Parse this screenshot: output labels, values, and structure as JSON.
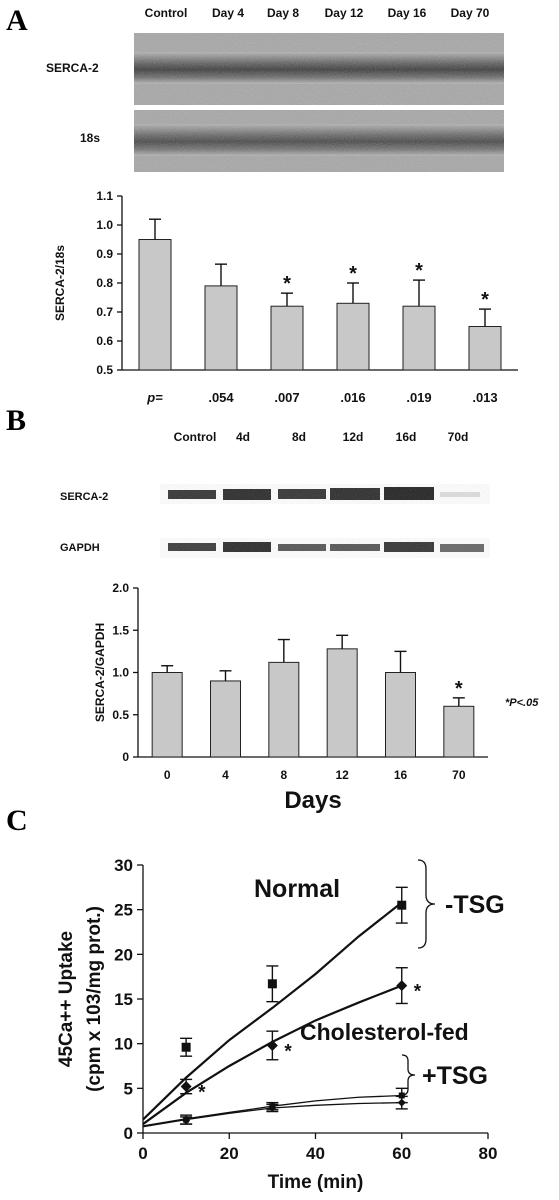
{
  "panels": [
    {
      "letter": "A",
      "blot_rows": [
        "SERCA-2",
        "18s"
      ],
      "lanes": [
        "Control",
        "Day 4",
        "Day 8",
        "Day 12",
        "Day 16",
        "Day 70"
      ],
      "p_label": "p=",
      "p_values": [
        "",
        ".054",
        ".007",
        ".016",
        ".019",
        ".013"
      ]
    },
    {
      "letter": "B",
      "blot_rows": [
        "SERCA-2",
        "GAPDH"
      ],
      "lanes": [
        "Control",
        "4d",
        "8d",
        "12d",
        "16d",
        "70d"
      ],
      "significance_note": "*P<.05"
    },
    {
      "letter": "C",
      "curve_labels": [
        "Normal",
        "Cholesterol-fed"
      ],
      "group_labels": [
        "-TSG",
        "+TSG"
      ]
    }
  ],
  "chart_data": [
    {
      "type": "bar",
      "categories": [
        "Control",
        "Day 4",
        "Day 8",
        "Day 12",
        "Day 16",
        "Day 70"
      ],
      "values": [
        0.95,
        0.79,
        0.72,
        0.73,
        0.72,
        0.65
      ],
      "errors": [
        0.07,
        0.075,
        0.045,
        0.07,
        0.09,
        0.06
      ],
      "significant": [
        false,
        false,
        true,
        true,
        true,
        true
      ],
      "xlabel": "",
      "ylabel": "SERCA-2/18s",
      "ylim": [
        0.5,
        1.1
      ],
      "yticks": [
        "0.5",
        "0.6",
        "0.7",
        "0.8",
        "0.9",
        "1.0",
        "1.1"
      ],
      "grid": false
    },
    {
      "type": "bar",
      "categories": [
        "0",
        "4",
        "8",
        "12",
        "16",
        "70"
      ],
      "values": [
        1.0,
        0.9,
        1.12,
        1.28,
        1.0,
        0.6
      ],
      "errors": [
        0.08,
        0.12,
        0.27,
        0.16,
        0.25,
        0.1
      ],
      "significant": [
        false,
        false,
        false,
        false,
        false,
        true
      ],
      "xlabel": "Days",
      "ylabel": "SERCA-2/GAPDH",
      "ylim": [
        0,
        2.0
      ],
      "yticks": [
        "0",
        "0.5",
        "1.0",
        "1.5",
        "2.0"
      ],
      "grid": false
    },
    {
      "type": "line",
      "xlabel": "Time (min)",
      "ylabel_lines": [
        "45Ca++ Uptake",
        "(cpm x 103/mg prot.)"
      ],
      "xlim": [
        0,
        80
      ],
      "ylim": [
        0,
        30
      ],
      "xticks": [
        "0",
        "20",
        "40",
        "60",
        "80"
      ],
      "yticks": [
        "0",
        "5",
        "10",
        "15",
        "20",
        "25",
        "30"
      ],
      "grid": false,
      "series": [
        {
          "name": "Normal",
          "marker": "square",
          "x": [
            10,
            30,
            60
          ],
          "y": [
            9.6,
            16.7,
            25.5
          ],
          "errors": [
            1.0,
            2.0,
            2.0
          ],
          "fit": [
            [
              0,
              1.5
            ],
            [
              10,
              6.2
            ],
            [
              20,
              10.4
            ],
            [
              30,
              14.0
            ],
            [
              40,
              17.8
            ],
            [
              50,
              22.0
            ],
            [
              60,
              25.8
            ]
          ],
          "significant": [
            false,
            false,
            false
          ]
        },
        {
          "name": "Cholesterol-fed",
          "marker": "diamond",
          "x": [
            10,
            30,
            60
          ],
          "y": [
            5.2,
            9.8,
            16.5
          ],
          "errors": [
            0.8,
            1.6,
            2.0
          ],
          "fit": [
            [
              0,
              1.0
            ],
            [
              10,
              4.5
            ],
            [
              20,
              7.5
            ],
            [
              30,
              10.2
            ],
            [
              40,
              12.6
            ],
            [
              50,
              14.6
            ],
            [
              60,
              16.5
            ]
          ],
          "significant": [
            true,
            true,
            true
          ]
        },
        {
          "name": "",
          "marker": "square",
          "x": [
            10,
            30,
            60
          ],
          "y": [
            1.5,
            3.0,
            4.2
          ],
          "errors": [
            0.5,
            0.4,
            0.8
          ],
          "fit": [
            [
              0,
              0.8
            ],
            [
              10,
              1.6
            ],
            [
              20,
              2.3
            ],
            [
              30,
              3.0
            ],
            [
              40,
              3.6
            ],
            [
              50,
              4.0
            ],
            [
              60,
              4.2
            ]
          ],
          "significant": [
            false,
            false,
            false
          ]
        },
        {
          "name": "",
          "marker": "diamond",
          "x": [
            10,
            30,
            60
          ],
          "y": [
            1.4,
            2.8,
            3.4
          ],
          "errors": [
            0.4,
            0.4,
            0.7
          ],
          "fit": [
            [
              0,
              0.7
            ],
            [
              10,
              1.5
            ],
            [
              20,
              2.2
            ],
            [
              30,
              2.8
            ],
            [
              40,
              3.1
            ],
            [
              50,
              3.3
            ],
            [
              60,
              3.4
            ]
          ],
          "significant": [
            false,
            false,
            false
          ]
        }
      ]
    }
  ]
}
